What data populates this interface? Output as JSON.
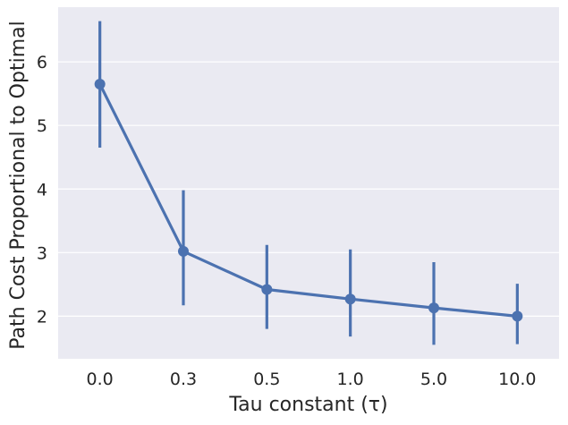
{
  "chart_data": {
    "type": "line",
    "title": "",
    "xlabel": "Tau constant (τ)",
    "ylabel": "Path Cost Proportional to Optimal",
    "categories": [
      "0.0",
      "0.3",
      "0.5",
      "1.0",
      "5.0",
      "10.0"
    ],
    "series": [
      {
        "values": [
          5.65,
          3.02,
          2.42,
          2.27,
          2.13,
          2.0
        ],
        "err_low": [
          4.65,
          2.17,
          1.8,
          1.68,
          1.55,
          1.56
        ],
        "err_high": [
          6.64,
          3.98,
          3.12,
          3.05,
          2.85,
          2.51
        ]
      }
    ],
    "ylim": [
      1.33,
      6.86
    ],
    "yticks": [
      2,
      3,
      4,
      5,
      6
    ],
    "grid": true,
    "legend": "none",
    "colors": {
      "series": "#4c72b0",
      "plot_bg": "#eaeaf2",
      "grid": "#ffffff",
      "text": "#262626"
    }
  }
}
